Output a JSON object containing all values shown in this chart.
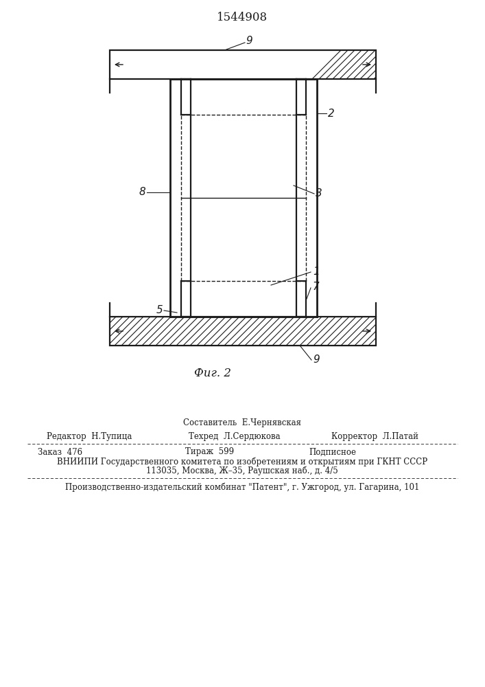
{
  "title": "1544908",
  "fig_caption": "Фиг. 2",
  "line_color": "#1a1a1a",
  "label_9_top": "9",
  "label_2": "2",
  "label_8": "8",
  "label_3": "3",
  "label_1": "1",
  "label_7": "7",
  "label_5": "5",
  "label_9_bot": "9",
  "footer_composer": "Составитель  Е.Чернявская",
  "footer_editor": "Редактор  Н.Тупица",
  "footer_techred": "Техред  Л.Сердюкова",
  "footer_corrector": "Корректор  Л.Патай",
  "footer_order": "Заказ  476",
  "footer_tirazh": "Тираж  599",
  "footer_podpisnoe": "Подписное",
  "footer_vniipи": "ВНИИПИ Государственного комитета по изобретениям и открытиям при ГКНТ СССР",
  "footer_addr": "113035, Москва, Ж–35, Раушская наб., д. 4/5",
  "footer_plant": "Производственно-издательский комбинат \"Патент\", г. Ужгород, ул. Гагарина, 101"
}
